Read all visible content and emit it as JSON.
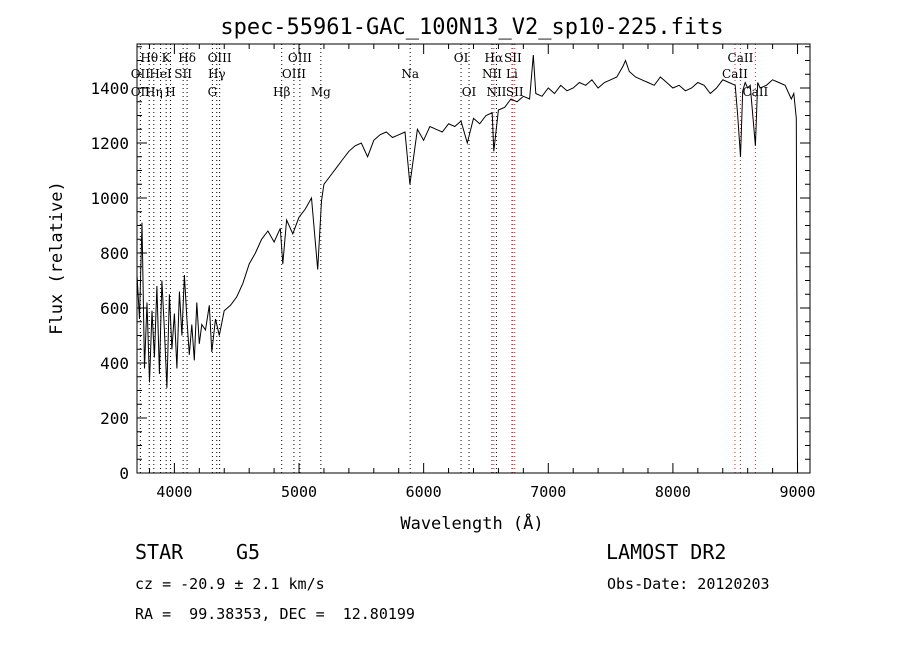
{
  "chart_data": {
    "type": "line",
    "title": "spec-55961-GAC_100N13_V2_sp10-225.fits",
    "xlabel": "Wavelength (Å)",
    "ylabel": "Flux (relative)",
    "xlim": [
      3700,
      9100
    ],
    "ylim": [
      0,
      1560
    ],
    "xticks": [
      4000,
      5000,
      6000,
      7000,
      8000,
      9000
    ],
    "yticks": [
      0,
      200,
      400,
      600,
      800,
      1000,
      1200,
      1400
    ],
    "grid": false,
    "series": [
      {
        "color": "#000000",
        "x": [
          3700,
          3720,
          3740,
          3760,
          3780,
          3800,
          3820,
          3840,
          3860,
          3880,
          3900,
          3920,
          3940,
          3960,
          3980,
          4000,
          4020,
          4040,
          4060,
          4080,
          4100,
          4120,
          4140,
          4160,
          4180,
          4200,
          4220,
          4250,
          4280,
          4300,
          4330,
          4360,
          4400,
          4450,
          4500,
          4550,
          4600,
          4650,
          4700,
          4750,
          4800,
          4850,
          4870,
          4900,
          4950,
          5000,
          5050,
          5100,
          5150,
          5180,
          5200,
          5250,
          5300,
          5350,
          5400,
          5450,
          5500,
          5550,
          5600,
          5650,
          5700,
          5750,
          5800,
          5850,
          5890,
          5950,
          6000,
          6050,
          6100,
          6150,
          6200,
          6250,
          6300,
          6350,
          6400,
          6450,
          6500,
          6550,
          6563,
          6600,
          6650,
          6700,
          6750,
          6800,
          6850,
          6880,
          6900,
          6950,
          7000,
          7050,
          7100,
          7150,
          7200,
          7250,
          7300,
          7350,
          7400,
          7450,
          7500,
          7550,
          7600,
          7620,
          7650,
          7700,
          7750,
          7800,
          7850,
          7900,
          7950,
          8000,
          8050,
          8100,
          8150,
          8200,
          8250,
          8300,
          8350,
          8400,
          8450,
          8500,
          8520,
          8542,
          8560,
          8580,
          8600,
          8620,
          8662,
          8680,
          8700,
          8750,
          8800,
          8850,
          8900,
          8950,
          8970,
          8990,
          9000
        ],
        "y": [
          720,
          560,
          910,
          380,
          620,
          330,
          590,
          420,
          680,
          360,
          700,
          520,
          310,
          650,
          450,
          580,
          380,
          660,
          500,
          720,
          560,
          430,
          540,
          410,
          620,
          470,
          540,
          520,
          610,
          440,
          560,
          500,
          590,
          610,
          640,
          690,
          760,
          800,
          850,
          880,
          840,
          890,
          760,
          920,
          870,
          930,
          960,
          1000,
          740,
          990,
          1050,
          1080,
          1110,
          1140,
          1170,
          1190,
          1200,
          1150,
          1210,
          1230,
          1240,
          1220,
          1230,
          1240,
          1050,
          1250,
          1210,
          1260,
          1250,
          1240,
          1270,
          1260,
          1280,
          1200,
          1290,
          1270,
          1300,
          1310,
          1170,
          1320,
          1330,
          1360,
          1350,
          1370,
          1360,
          1520,
          1380,
          1370,
          1400,
          1380,
          1410,
          1390,
          1400,
          1420,
          1410,
          1430,
          1400,
          1420,
          1430,
          1440,
          1480,
          1500,
          1460,
          1440,
          1430,
          1420,
          1410,
          1440,
          1420,
          1400,
          1410,
          1390,
          1400,
          1420,
          1410,
          1380,
          1400,
          1430,
          1420,
          1410,
          1300,
          1150,
          1390,
          1420,
          1400,
          1410,
          1190,
          1420,
          1400,
          1410,
          1430,
          1420,
          1410,
          1360,
          1380,
          1290,
          0
        ]
      }
    ],
    "lines_absorption": [
      {
        "label": "Hθ",
        "x": 3798,
        "row": 0,
        "dx": 0
      },
      {
        "label": "K",
        "x": 3934,
        "row": 0,
        "dx": 0
      },
      {
        "label": "Hδ",
        "x": 4102,
        "row": 0,
        "dx": 0
      },
      {
        "label": "OIII",
        "x": 4363,
        "row": 0,
        "dx": 0
      },
      {
        "label": "OIII",
        "x": 5007,
        "row": 0,
        "dx": 0
      },
      {
        "label": "OI",
        "x": 6300,
        "row": 0,
        "dx": 0
      },
      {
        "label": "Hα",
        "x": 6563,
        "row": 0,
        "dx": 0
      },
      {
        "label": "SII",
        "x": 6716,
        "row": 0,
        "dx": 0
      },
      {
        "label": "CaII",
        "x": 8542,
        "row": 0,
        "dx": 0
      },
      {
        "label": "OII",
        "x": 3727,
        "row": 1,
        "dx": 0
      },
      {
        "label": "HeI",
        "x": 3889,
        "row": 1,
        "dx": 0
      },
      {
        "label": "SII",
        "x": 4070,
        "row": 1,
        "dx": 0
      },
      {
        "label": "Hγ",
        "x": 4340,
        "row": 1,
        "dx": 0
      },
      {
        "label": "OIII",
        "x": 4959,
        "row": 1,
        "dx": 0
      },
      {
        "label": "Na",
        "x": 5892,
        "row": 1,
        "dx": 0
      },
      {
        "label": "NII",
        "x": 6548,
        "row": 1,
        "dx": 0
      },
      {
        "label": "Li",
        "x": 6708,
        "row": 1,
        "dx": 0
      },
      {
        "label": "CaII",
        "x": 8498,
        "row": 1,
        "dx": 0
      },
      {
        "label": "OII",
        "x": 3727,
        "row": 2,
        "dx": 0
      },
      {
        "label": "Hη",
        "x": 3835,
        "row": 2,
        "dx": 0
      },
      {
        "label": "H",
        "x": 3969,
        "row": 2,
        "dx": 0
      },
      {
        "label": "G",
        "x": 4305,
        "row": 2,
        "dx": 0
      },
      {
        "label": "Hβ",
        "x": 4861,
        "row": 2,
        "dx": 0
      },
      {
        "label": "Mg",
        "x": 5175,
        "row": 2,
        "dx": 0
      },
      {
        "label": "OI",
        "x": 6364,
        "row": 2,
        "dx": 0
      },
      {
        "label": "NII",
        "x": 6584,
        "row": 2,
        "dx": 0
      },
      {
        "label": "SII",
        "x": 6731,
        "row": 2,
        "dx": 0
      },
      {
        "label": "CaII",
        "x": 8662,
        "row": 2,
        "dx": 0
      }
    ],
    "marker_lines_black": [
      3727,
      3798,
      3835,
      3889,
      3934,
      3969,
      4070,
      4102,
      4305,
      4340,
      4363,
      4861,
      4959,
      5007,
      5175,
      5892,
      6300,
      6364,
      6548,
      6584
    ],
    "marker_lines_red": [
      6563,
      6708,
      6716,
      6731,
      8498,
      8542,
      8662
    ]
  },
  "footer": {
    "object_class": "STAR",
    "subclass": "G5",
    "survey": "LAMOST DR2",
    "redshift": "cz = -20.9 ± 2.1 km/s",
    "obs_date": "Obs-Date: 20120203",
    "coords": "RA =  99.38353, DEC =  12.80199"
  }
}
